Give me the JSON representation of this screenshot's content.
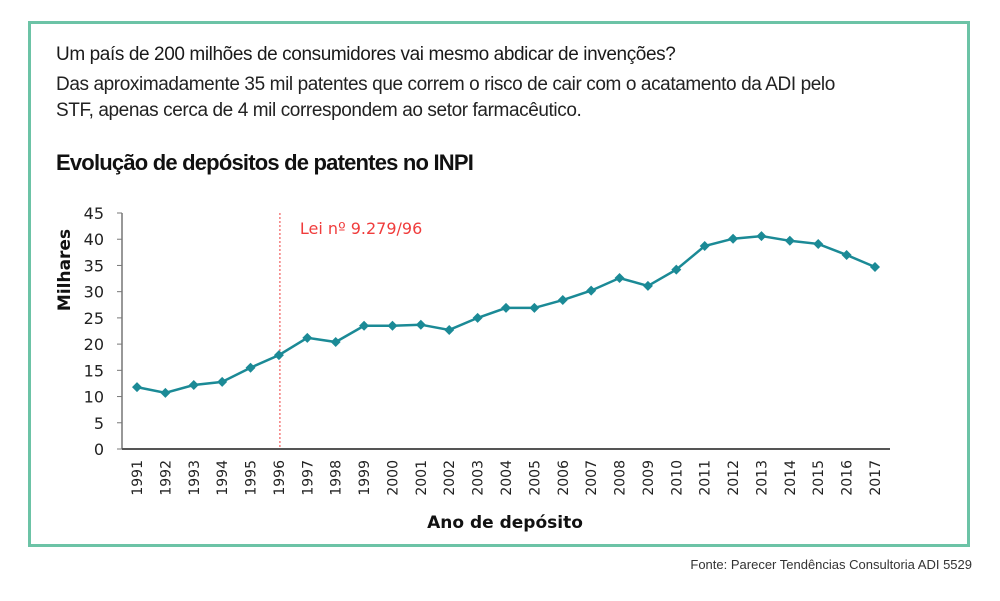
{
  "header": {
    "question": "Um país de 200 milhões de consumidores vai mesmo abdicar de invenções?",
    "subtitle": "Das aproximadamente 35 mil patentes que correm o risco de cair com o acatamento da ADI pelo STF, apenas cerca de 4 mil correspondem ao setor farmacêutico."
  },
  "source": "Fonte: Parecer Tendências Consultoria ADI 5529",
  "chart_data": {
    "type": "line",
    "title": "Evolução de depósitos de patentes no INPI",
    "xlabel": "Ano de depósito",
    "ylabel": "Milhares",
    "ylim": [
      0,
      45
    ],
    "yticks": [
      0,
      5,
      10,
      15,
      20,
      25,
      30,
      35,
      40,
      45
    ],
    "grid": false,
    "x": [
      "1991",
      "1992",
      "1993",
      "1994",
      "1995",
      "1996",
      "1997",
      "1998",
      "1999",
      "2000",
      "2001",
      "2002",
      "2003",
      "2004",
      "2005",
      "2006",
      "2007",
      "2008",
      "2009",
      "2010",
      "2011",
      "2012",
      "2013",
      "2014",
      "2015",
      "2016",
      "2017"
    ],
    "values": [
      11.8,
      10.7,
      12.2,
      12.8,
      15.5,
      17.9,
      21.2,
      20.4,
      23.5,
      23.5,
      23.7,
      22.7,
      25.0,
      26.9,
      26.9,
      28.4,
      30.2,
      32.6,
      31.1,
      34.2,
      38.7,
      40.1,
      40.6,
      39.7,
      39.1,
      37.0,
      34.7
    ],
    "annotation": {
      "x": "1996",
      "label": "Lei nº 9.279/96",
      "color": "#f03c3c"
    },
    "line_color": "#1b8a96"
  }
}
